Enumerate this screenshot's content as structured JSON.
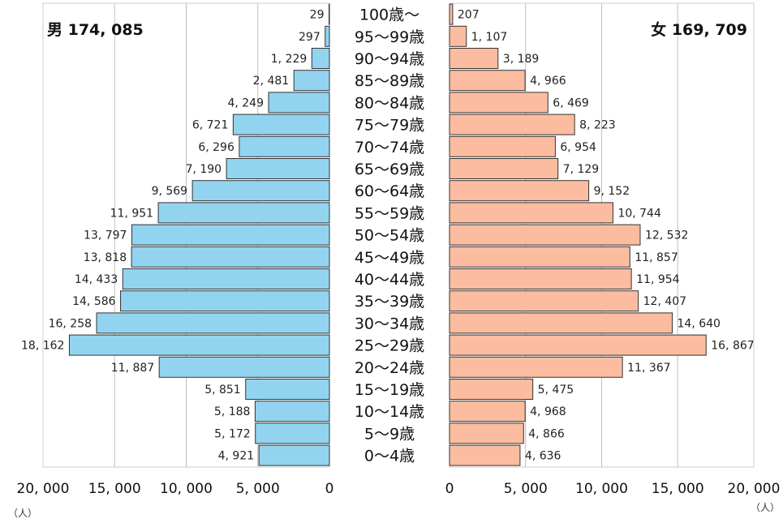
{
  "chart_data": {
    "type": "bar",
    "orientation": "horizontal",
    "layout": "population-pyramid",
    "categories": [
      "100歳～",
      "95～99歳",
      "90～94歳",
      "85～89歳",
      "80～84歳",
      "75～79歳",
      "70～74歳",
      "65～69歳",
      "60～64歳",
      "55～59歳",
      "50～54歳",
      "45～49歳",
      "40～44歳",
      "35～39歳",
      "30～34歳",
      "25～29歳",
      "20～24歳",
      "15～19歳",
      "10～14歳",
      "5～9歳",
      "0～4歳"
    ],
    "series": [
      {
        "name": "男",
        "total_label": "男 174, 085",
        "color": "#92d4f0",
        "values": [
          29,
          297,
          1229,
          2481,
          4249,
          6721,
          6296,
          7190,
          9569,
          11951,
          13797,
          13818,
          14433,
          14586,
          16258,
          18162,
          11887,
          5851,
          5188,
          5172,
          4921
        ],
        "labels": [
          "29",
          "297",
          "1, 229",
          "2, 481",
          "4, 249",
          "6, 721",
          "6, 296",
          "7, 190",
          "9, 569",
          "11, 951",
          "13, 797",
          "13, 818",
          "14, 433",
          "14, 586",
          "16, 258",
          "18, 162",
          "11, 887",
          "5, 851",
          "5, 188",
          "5, 172",
          "4, 921"
        ]
      },
      {
        "name": "女",
        "total_label": "女 169, 709",
        "color": "#fbbca0",
        "values": [
          207,
          1107,
          3189,
          4966,
          6469,
          8223,
          6954,
          7129,
          9152,
          10744,
          12532,
          11857,
          11954,
          12407,
          14640,
          16867,
          11367,
          5475,
          4968,
          4866,
          4636
        ],
        "labels": [
          "207",
          "1, 107",
          "3, 189",
          "4, 966",
          "6, 469",
          "8, 223",
          "6, 954",
          "7, 129",
          "9, 152",
          "10, 744",
          "12, 532",
          "11, 857",
          "11, 954",
          "12, 407",
          "14, 640",
          "16, 867",
          "11, 367",
          "5, 475",
          "4, 968",
          "4, 866",
          "4, 636"
        ]
      }
    ],
    "x_range": [
      0,
      20000
    ],
    "x_ticks_left": [
      "20, 000",
      "15, 000",
      "10, 000",
      "5, 000",
      "0"
    ],
    "x_ticks_right": [
      "0",
      "5, 000",
      "10, 000",
      "15, 000",
      "20, 000"
    ],
    "unit_label": "（人）",
    "grid": true,
    "grid_color": "#bfbfbf"
  }
}
